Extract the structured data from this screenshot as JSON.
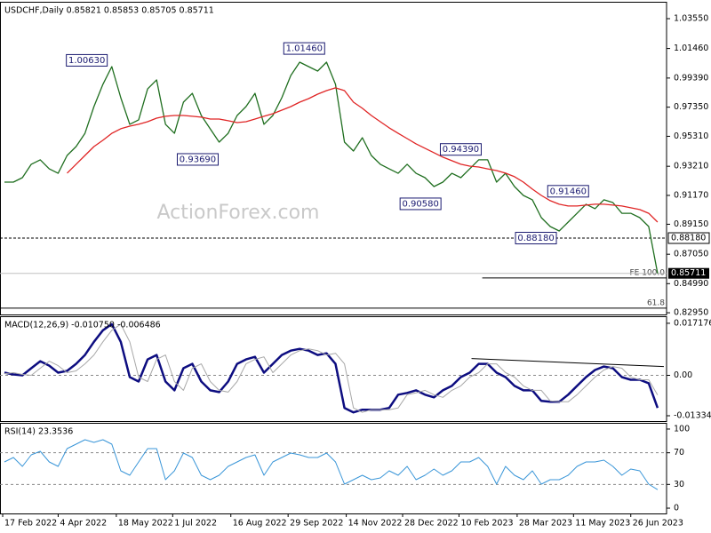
{
  "chart_data": [
    {
      "type": "line",
      "title": "USDCHF,Daily 0.85821 0.85853 0.85705 0.85711",
      "watermark": "ActionForex.com",
      "x": [
        0,
        1,
        2,
        3,
        4,
        5,
        6,
        7,
        8,
        9,
        10,
        11,
        12,
        13,
        14,
        15,
        16,
        17,
        18,
        19,
        20,
        21,
        22,
        23,
        24,
        25,
        26,
        27,
        28,
        29,
        30,
        31,
        32,
        33,
        34,
        35,
        36,
        37,
        38,
        39,
        40,
        41,
        42,
        43,
        44,
        45,
        46,
        47,
        48,
        49,
        50,
        51,
        52,
        53,
        54,
        55,
        56,
        57,
        58,
        59,
        60,
        61,
        62,
        63,
        64,
        65,
        66,
        67,
        68,
        69,
        70,
        71,
        72,
        73
      ],
      "xlim": [
        -0.5,
        74
      ],
      "ylim": [
        0.8283,
        1.0467
      ],
      "yticks": [
        {
          "value": 1.0355,
          "label": "1.03550"
        },
        {
          "value": 1.0146,
          "label": "1.01460"
        },
        {
          "value": 0.9939,
          "label": "0.99390"
        },
        {
          "value": 0.9735,
          "label": "0.97350"
        },
        {
          "value": 0.9531,
          "label": "0.95310"
        },
        {
          "value": 0.9321,
          "label": "0.93210"
        },
        {
          "value": 0.9117,
          "label": "0.91170"
        },
        {
          "value": 0.8915,
          "label": "0.89150"
        },
        {
          "value": 0.8705,
          "label": "0.87050"
        },
        {
          "value": 0.8499,
          "label": "0.84990"
        },
        {
          "value": 0.8295,
          "label": "0.82950"
        }
      ],
      "series": [
        {
          "color": "#1f6e1f",
          "values": [
            0.921,
            0.921,
            0.9241,
            0.9335,
            0.9366,
            0.9303,
            0.9272,
            0.9397,
            0.9459,
            0.9552,
            0.9739,
            0.9895,
            1.0019,
            0.9801,
            0.9615,
            0.9646,
            0.9863,
            0.9926,
            0.9615,
            0.9552,
            0.977,
            0.9832,
            0.9677,
            0.9583,
            0.949,
            0.9552,
            0.9677,
            0.9739,
            0.9832,
            0.9615,
            0.9677,
            0.9801,
            0.9957,
            1.005,
            1.0019,
            0.9988,
            1.005,
            0.9895,
            0.949,
            0.9428,
            0.9521,
            0.9397,
            0.9335,
            0.9303,
            0.9272,
            0.9335,
            0.9272,
            0.9241,
            0.9179,
            0.921,
            0.9272,
            0.9241,
            0.9303,
            0.9366,
            0.9366,
            0.921,
            0.9272,
            0.9179,
            0.9117,
            0.9086,
            0.8961,
            0.8899,
            0.8868,
            0.893,
            0.8992,
            0.9055,
            0.9024,
            0.9086,
            0.9067,
            0.8992,
            0.8992,
            0.8961,
            0.8899,
            0.8571
          ]
        },
        {
          "color": "#e02525",
          "values": [
            null,
            null,
            null,
            null,
            null,
            null,
            null,
            0.9273,
            0.9335,
            0.9397,
            0.9459,
            0.9503,
            0.9552,
            0.9584,
            0.9602,
            0.9615,
            0.9633,
            0.9658,
            0.9671,
            0.9677,
            0.9677,
            0.9671,
            0.9665,
            0.9652,
            0.9652,
            0.964,
            0.9627,
            0.9633,
            0.9652,
            0.9671,
            0.9689,
            0.9714,
            0.9739,
            0.977,
            0.9795,
            0.9826,
            0.9851,
            0.987,
            0.9851,
            0.977,
            0.9727,
            0.9677,
            0.9633,
            0.959,
            0.9552,
            0.9515,
            0.9478,
            0.9447,
            0.9416,
            0.9385,
            0.936,
            0.9335,
            0.9322,
            0.9316,
            0.9303,
            0.9291,
            0.9273,
            0.9248,
            0.921,
            0.9161,
            0.9117,
            0.908,
            0.9055,
            0.9043,
            0.9043,
            0.9049,
            0.9055,
            0.9055,
            0.9049,
            0.9043,
            0.903,
            0.9018,
            0.8992,
            0.893
          ]
        }
      ],
      "annotations": [
        {
          "value": 1.0063,
          "label": "1.00630",
          "x": 9.2
        },
        {
          "value": 1.0146,
          "label": "1.01460",
          "x": 33.5
        },
        {
          "value": 0.9369,
          "label": "0.93690",
          "x": 21.6
        },
        {
          "value": 0.9439,
          "label": "0.94390",
          "x": 51
        },
        {
          "value": 0.9058,
          "label": "0.90580",
          "x": 46.5
        },
        {
          "value": 0.9146,
          "label": "0.91460",
          "x": 63
        },
        {
          "value": 0.8818,
          "label": "0.88180",
          "x": 59.4
        }
      ],
      "level": {
        "value": 0.8818,
        "label": "0.88180"
      },
      "last_price": {
        "value": 0.85711,
        "label": "0.85711"
      },
      "fib_lines": [
        {
          "value": 0.8539,
          "label": "FE 100.0",
          "x": [
            53.4,
            74
          ]
        },
        {
          "value": 0.8327,
          "label": "61.8",
          "x": [
            -0.5,
            74
          ]
        }
      ]
    },
    {
      "type": "line",
      "title": "MACD(12,26,9) -0.010750 -0.006486",
      "x": [
        0,
        1,
        2,
        3,
        4,
        5,
        6,
        7,
        8,
        9,
        10,
        11,
        12,
        13,
        14,
        15,
        16,
        17,
        18,
        19,
        20,
        21,
        22,
        23,
        24,
        25,
        26,
        27,
        28,
        29,
        30,
        31,
        32,
        33,
        34,
        35,
        36,
        37,
        38,
        39,
        40,
        41,
        42,
        43,
        44,
        45,
        46,
        47,
        48,
        49,
        50,
        51,
        52,
        53,
        54,
        55,
        56,
        57,
        58,
        59,
        60,
        61,
        62,
        63,
        64,
        65,
        66,
        67,
        68,
        69,
        70,
        71,
        72,
        73
      ],
      "xlim": [
        -0.5,
        74
      ],
      "ylim": [
        -0.0151,
        0.0192
      ],
      "yticks": [
        0.017176,
        {
          "value": 0,
          "label": "0.00"
        },
        -0.01334
      ],
      "levels": [
        0
      ],
      "series": [
        {
          "color": "#0d0d80",
          "width": 2.5,
          "values": [
            0.00087,
            0.00029,
            0,
            0.00233,
            0.00466,
            0.0032,
            0.00087,
            0.00146,
            0.00378,
            0.0067,
            0.01106,
            0.01485,
            0.01688,
            0.01106,
            -0.00058,
            -0.00204,
            0.00524,
            0.0067,
            -0.00204,
            -0.00495,
            0.00233,
            0.00378,
            -0.00204,
            -0.00495,
            -0.00553,
            -0.00204,
            0.00378,
            0.00524,
            0.00611,
            0.00087,
            0.00378,
            0.0067,
            0.00815,
            0.00873,
            0.00815,
            0.0067,
            0.00728,
            0.00378,
            -0.01077,
            -0.01223,
            -0.01135,
            -0.01135,
            -0.01135,
            -0.01077,
            -0.0064,
            -0.00582,
            -0.00495,
            -0.0064,
            -0.00728,
            -0.00495,
            -0.00349,
            -0.00058,
            0.00087,
            0.00378,
            0.00378,
            0.00087,
            -0.00058,
            -0.00349,
            -0.00495,
            -0.00495,
            -0.00844,
            -0.00873,
            -0.00873,
            -0.0064,
            -0.00349,
            -0.00058,
            0.00175,
            0.00291,
            0.00233,
            -0.00058,
            -0.00146,
            -0.00146,
            -0.00262,
            -0.01075
          ]
        },
        {
          "color": "#a8a8a8",
          "width": 1,
          "values": [
            0.0005,
            0.00087,
            0.00029,
            0,
            0.00233,
            0.00466,
            0.0032,
            0.00087,
            0.00146,
            0.00378,
            0.0067,
            0.01106,
            0.01485,
            0.01688,
            0.01106,
            -0.00058,
            -0.00204,
            0.00524,
            0.0067,
            -0.00204,
            -0.00495,
            0.00233,
            0.00378,
            -0.00204,
            -0.00495,
            -0.00553,
            -0.00204,
            0.00378,
            0.00524,
            0.00611,
            0.00087,
            0.00378,
            0.0067,
            0.00815,
            0.00873,
            0.00815,
            0.0067,
            0.00728,
            0.00378,
            -0.01077,
            -0.01223,
            -0.01135,
            -0.01135,
            -0.01135,
            -0.01077,
            -0.0064,
            -0.00582,
            -0.00495,
            -0.0064,
            -0.00728,
            -0.00495,
            -0.00349,
            -0.00058,
            0.00087,
            0.00378,
            0.00378,
            0.00087,
            -0.00058,
            -0.00349,
            -0.00495,
            -0.00495,
            -0.00844,
            -0.00873,
            -0.00873,
            -0.0064,
            -0.00349,
            -0.00058,
            0.00175,
            0.00291,
            0.00233,
            -0.00058,
            -0.00146,
            -0.00146,
            -0.006486
          ]
        }
      ],
      "trendline": {
        "x": [
          52.2,
          73.7
        ],
        "y": [
          0.00553,
          0.00291
        ]
      }
    },
    {
      "type": "line",
      "title": "RSI(14) 23.3536",
      "x": [
        0,
        1,
        2,
        3,
        4,
        5,
        6,
        7,
        8,
        9,
        10,
        11,
        12,
        13,
        14,
        15,
        16,
        17,
        18,
        19,
        20,
        21,
        22,
        23,
        24,
        25,
        26,
        27,
        28,
        29,
        30,
        31,
        32,
        33,
        34,
        35,
        36,
        37,
        38,
        39,
        40,
        41,
        42,
        43,
        44,
        45,
        46,
        47,
        48,
        49,
        50,
        51,
        52,
        53,
        54,
        55,
        56,
        57,
        58,
        59,
        60,
        61,
        62,
        63,
        64,
        65,
        66,
        67,
        68,
        69,
        70,
        71,
        72,
        73
      ],
      "xlim": [
        -0.5,
        74
      ],
      "xticks": [
        {
          "value": -0.2,
          "label": "17 Feb 2022"
        },
        {
          "value": 6,
          "label": "4 Apr 2022"
        },
        {
          "value": 12.5,
          "label": "18 May 2022"
        },
        {
          "value": 18.8,
          "label": "1 Jul 2022"
        },
        {
          "value": 25.3,
          "label": "16 Aug 2022"
        },
        {
          "value": 31.7,
          "label": "29 Sep 2022"
        },
        {
          "value": 38.2,
          "label": "14 Nov 2022"
        },
        {
          "value": 44.5,
          "label": "28 Dec 2022"
        },
        {
          "value": 50.8,
          "label": "10 Feb 2023"
        },
        {
          "value": 57.3,
          "label": "28 Mar 2023"
        },
        {
          "value": 63.6,
          "label": "11 May 2023"
        },
        {
          "value": 70,
          "label": "26 Jun 2023"
        }
      ],
      "ylim": [
        -6.7,
        106.7
      ],
      "yticks": [
        100,
        70,
        30,
        0
      ],
      "levels": [
        70,
        30
      ],
      "series": [
        {
          "color": "#3a96d8",
          "width": 1,
          "values": [
            58.4,
            64.0,
            52.8,
            67.4,
            71.9,
            58.4,
            52.8,
            75.3,
            80.9,
            86.5,
            83.1,
            86.5,
            80.9,
            47.2,
            41.6,
            58.4,
            75.3,
            75.3,
            36.0,
            47.2,
            69.7,
            64.0,
            41.6,
            36.0,
            41.6,
            52.8,
            58.4,
            64.0,
            67.4,
            41.6,
            58.4,
            64.0,
            69.7,
            67.4,
            64.0,
            64.0,
            69.7,
            58.4,
            30.3,
            36.0,
            41.6,
            36.0,
            38.2,
            47.2,
            41.6,
            52.8,
            36.0,
            41.6,
            49.4,
            41.6,
            47.2,
            58.4,
            58.4,
            64.0,
            52.8,
            30.3,
            52.8,
            41.6,
            36.0,
            47.2,
            30.3,
            36.0,
            36.0,
            41.6,
            52.8,
            58.4,
            58.4,
            60.7,
            52.8,
            41.6,
            49.4,
            47.2,
            30.3,
            23.3536
          ]
        }
      ]
    }
  ]
}
